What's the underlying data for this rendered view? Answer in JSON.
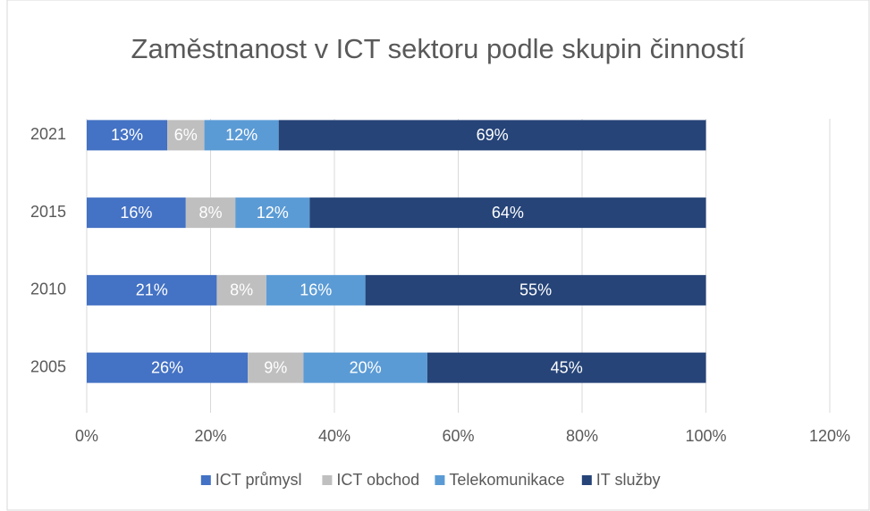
{
  "chart_data": {
    "type": "stacked-barh",
    "title": "Zaměstnanost v ICT sektoru podle skupin činností",
    "categories": [
      "2005",
      "2010",
      "2015",
      "2021"
    ],
    "series": [
      {
        "name": "ICT průmysl",
        "color": "#4472c4",
        "values": [
          26,
          21,
          16,
          13
        ],
        "value_labels": [
          "26%",
          "21%",
          "16%",
          "13%"
        ]
      },
      {
        "name": "ICT obchod",
        "color": "#bfbfbf",
        "values": [
          9,
          8,
          8,
          6
        ],
        "value_labels": [
          "9%",
          "8%",
          "8%",
          "6%"
        ]
      },
      {
        "name": "Telekomunikace",
        "color": "#5b9bd5",
        "values": [
          20,
          16,
          12,
          12
        ],
        "value_labels": [
          "20%",
          "16%",
          "12%",
          "12%"
        ]
      },
      {
        "name": "IT služby",
        "color": "#264478",
        "values": [
          45,
          55,
          64,
          69
        ],
        "value_labels": [
          "45%",
          "55%",
          "64%",
          "69%"
        ]
      }
    ],
    "xlim": [
      0,
      120
    ],
    "xticks": [
      {
        "value": 0,
        "label": "0%"
      },
      {
        "value": 20,
        "label": "20%"
      },
      {
        "value": 40,
        "label": "40%"
      },
      {
        "value": 60,
        "label": "60%"
      },
      {
        "value": 80,
        "label": "80%"
      },
      {
        "value": 100,
        "label": "100%"
      },
      {
        "value": 120,
        "label": "120%"
      }
    ],
    "grid": true,
    "legend": "bottom"
  }
}
